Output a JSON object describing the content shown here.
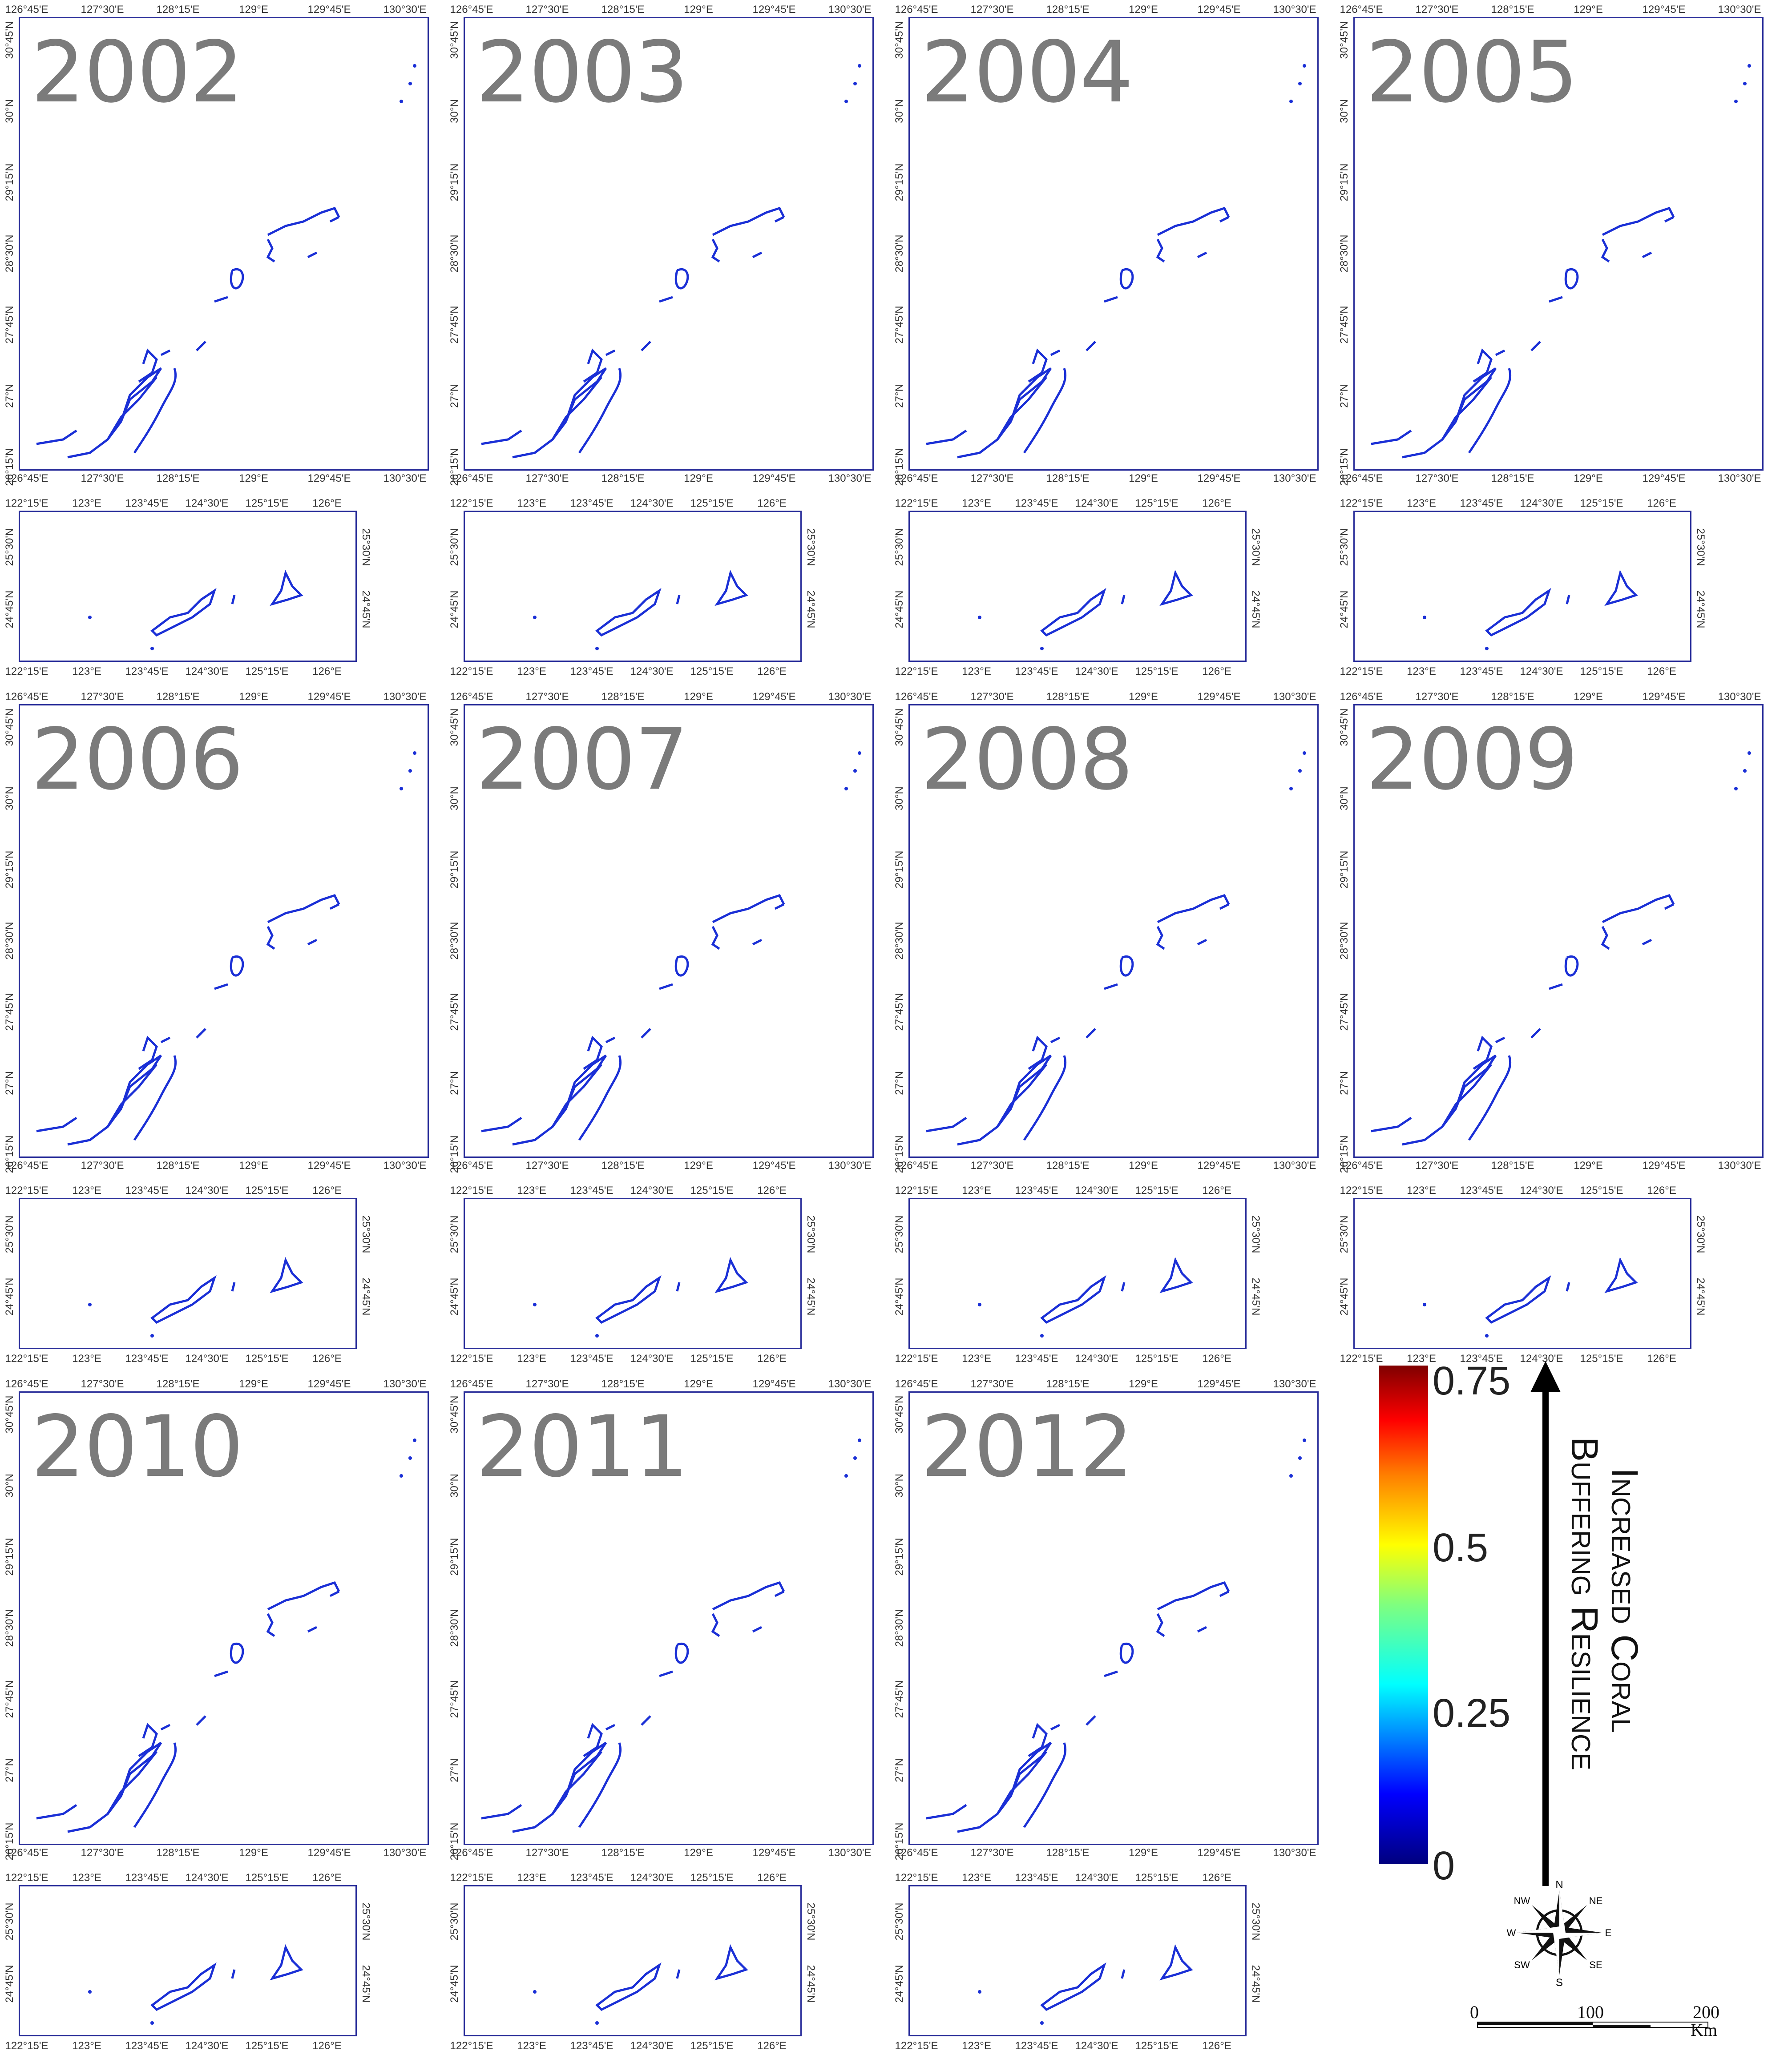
{
  "panels": [
    {
      "year": "2002"
    },
    {
      "year": "2003"
    },
    {
      "year": "2004"
    },
    {
      "year": "2005"
    },
    {
      "year": "2006"
    },
    {
      "year": "2007"
    },
    {
      "year": "2008"
    },
    {
      "year": "2009"
    },
    {
      "year": "2010"
    },
    {
      "year": "2011"
    },
    {
      "year": "2012"
    }
  ],
  "main_map": {
    "lon_ticks": [
      "126°45'E",
      "127°30'E",
      "128°15'E",
      "129°E",
      "129°45'E",
      "130°30'E"
    ],
    "lat_ticks": [
      "30°45'N",
      "30°N",
      "29°15'N",
      "28°30'N",
      "27°45'N",
      "27°N",
      "26°15'N"
    ]
  },
  "inset_map": {
    "lon_ticks": [
      "122°15'E",
      "123°E",
      "123°45'E",
      "124°30'E",
      "125°15'E",
      "126°E"
    ],
    "lat_ticks": [
      "25°30'N",
      "24°45'N"
    ]
  },
  "legend": {
    "title_line1": "Increased Coral",
    "title_line2": "Buffering Resilience",
    "max_label": "0.75",
    "mid_label": "0.5",
    "low_label": "0.25",
    "min_label": "0",
    "colors": [
      "#00007f",
      "#0000ff",
      "#00ffff",
      "#7fff7f",
      "#ffff00",
      "#ff7f00",
      "#ff0000",
      "#7f0000"
    ]
  },
  "compass": {
    "n": "N",
    "ne": "NE",
    "e": "E",
    "se": "SE",
    "s": "S",
    "sw": "SW",
    "w": "W",
    "nw": "NW"
  },
  "scale": {
    "ticks": [
      "0",
      "100",
      "200"
    ],
    "unit": "Km"
  }
}
